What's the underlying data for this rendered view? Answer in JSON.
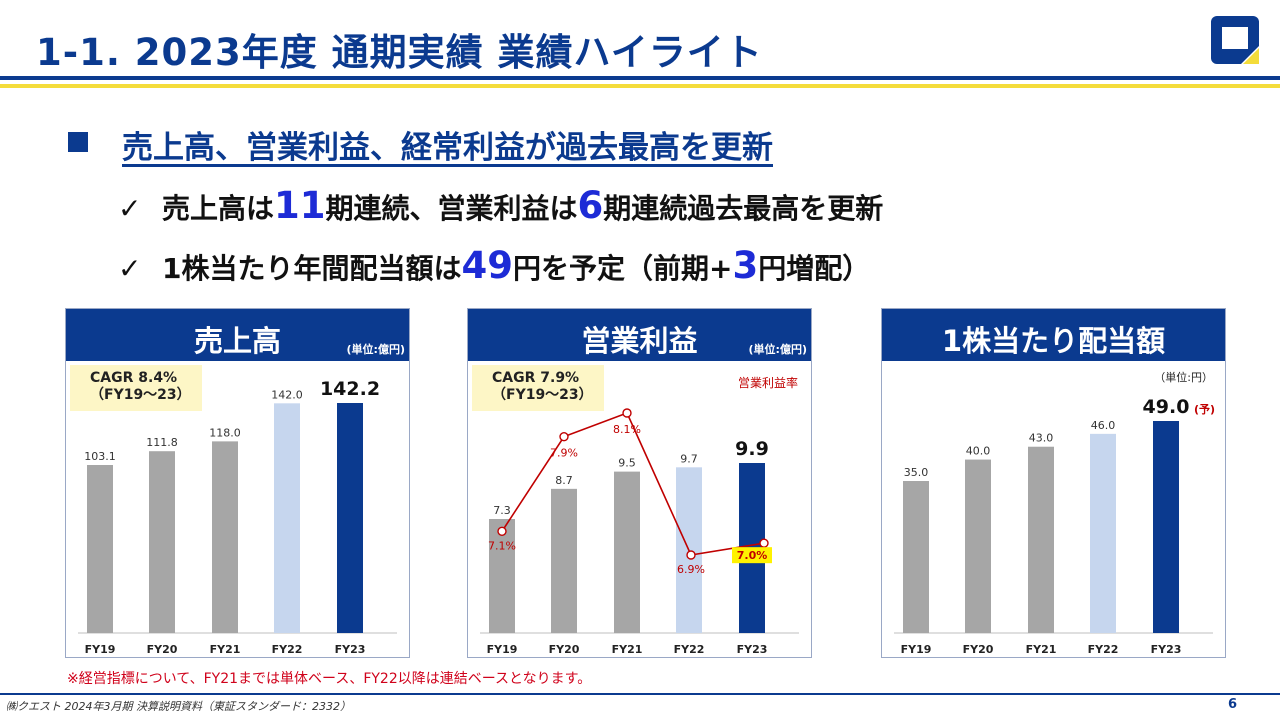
{
  "header": {
    "title": "1-1. 2023年度 通期実績  業績ハイライト"
  },
  "colors": {
    "brand_blue": "#0b3a8f",
    "accent_yellow": "#f4dc3a",
    "bar_gray": "#a6a6a6",
    "bar_light": "#c6d6ee",
    "highlight_blue": "#1d2bd6",
    "margin_line": "#c00000"
  },
  "headline": {
    "text": "売上高、営業利益、経常利益が過去最高を更新"
  },
  "bullets": {
    "check": "✓",
    "b1": {
      "t1": "売上高は",
      "n1": "11",
      "t2": "期連続、営業利益は",
      "n2": "6",
      "t3": "期連続過去最高を更新"
    },
    "b2": {
      "t1": "1株当たり年間配当額は",
      "n1": "49",
      "t2": "円を予定（前期+",
      "n2": "3",
      "t3": "円増配）"
    }
  },
  "panels": {
    "sales": {
      "title": "売上高",
      "unit": "(単位:億円)",
      "cagr_line1": "CAGR  8.4%",
      "cagr_line2": "（FY19～23）"
    },
    "op": {
      "title": "営業利益",
      "unit": "(単位:億円)",
      "cagr_line1": "CAGR  7.9%",
      "cagr_line2": "（FY19～23）",
      "margin_legend": "営業利益率"
    },
    "div": {
      "title": "1株当たり配当額",
      "unit": "（単位:円）",
      "forecast_mark": "(予)"
    }
  },
  "chart_data": [
    {
      "type": "bar",
      "title": "売上高",
      "categories": [
        "FY19",
        "FY20",
        "FY21",
        "FY22",
        "FY23"
      ],
      "values": [
        103.1,
        111.8,
        118.0,
        142.0,
        142.2
      ],
      "labels": [
        "103.1",
        "111.8",
        "118.0",
        "142.0",
        "142.2"
      ],
      "ylim": [
        0,
        142.2
      ]
    },
    {
      "type": "bar",
      "title": "営業利益",
      "categories": [
        "FY19",
        "FY20",
        "FY21",
        "FY22",
        "FY23"
      ],
      "values": [
        7.3,
        8.7,
        9.5,
        9.7,
        9.9
      ],
      "labels": [
        "7.3",
        "8.7",
        "9.5",
        "9.7",
        "9.9"
      ],
      "ylim": [
        0,
        9.9
      ],
      "line_series": {
        "name": "営業利益率",
        "values": [
          7.1,
          7.9,
          8.1,
          6.9,
          7.0
        ],
        "labels": [
          "7.1%",
          "7.9%",
          "8.1%",
          "6.9%",
          "7.0%"
        ]
      }
    },
    {
      "type": "bar",
      "title": "1株当たり配当額",
      "categories": [
        "FY19",
        "FY20",
        "FY21",
        "FY22",
        "FY23"
      ],
      "values": [
        35.0,
        40.0,
        43.0,
        46.0,
        49.0
      ],
      "labels": [
        "35.0",
        "40.0",
        "43.0",
        "46.0",
        "49.0"
      ],
      "ylim": [
        0,
        49.0
      ]
    }
  ],
  "footnote": "※経営指標について、FY21までは単体ベース、FY22以降は連結ベースとなります。",
  "footer": {
    "left": "㈱クエスト  2024年3月期 決算説明資料（東証スタンダード：2332）",
    "page": "6"
  }
}
